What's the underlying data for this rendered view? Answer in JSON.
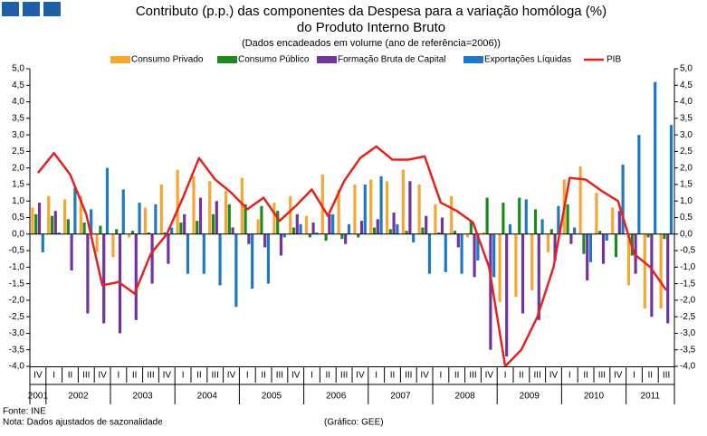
{
  "chart_data": {
    "type": "bar_line",
    "title_lines": [
      "Contributo (p.p.) das componentes da Despesa para a variação homóloga (%)",
      "do Produto Interno Bruto"
    ],
    "subtitle": "(Dados encadeados em volume (ano de referência=2006))",
    "groups": [
      {
        "label": "2001",
        "categories": [
          "IV"
        ]
      },
      {
        "label": "2002",
        "categories": [
          "I",
          "II",
          "III",
          "IV"
        ]
      },
      {
        "label": "2003",
        "categories": [
          "I",
          "II",
          "III",
          "IV"
        ]
      },
      {
        "label": "2004",
        "categories": [
          "I",
          "II",
          "III",
          "IV"
        ]
      },
      {
        "label": "2005",
        "categories": [
          "I",
          "II",
          "III",
          "IV"
        ]
      },
      {
        "label": "2006",
        "categories": [
          "I",
          "II",
          "III",
          "IV"
        ]
      },
      {
        "label": "2007",
        "categories": [
          "I",
          "II",
          "III",
          "IV"
        ]
      },
      {
        "label": "2008",
        "categories": [
          "I",
          "II",
          "III",
          "IV"
        ]
      },
      {
        "label": "2009",
        "categories": [
          "I",
          "II",
          "III",
          "IV"
        ]
      },
      {
        "label": "2010",
        "categories": [
          "I",
          "II",
          "III",
          "IV"
        ]
      },
      {
        "label": "2011",
        "categories": [
          "I",
          "II",
          "III"
        ]
      }
    ],
    "series": [
      {
        "name": "Consumo Privado",
        "color": "#f7a533",
        "kind": "bar",
        "values": [
          0.8,
          1.15,
          1.05,
          1.15,
          -0.55,
          -0.7,
          -0.1,
          0.8,
          1.5,
          1.95,
          1.75,
          1.6,
          1.3,
          1.7,
          0.45,
          0.95,
          1.15,
          0.55,
          1.8,
          1.35,
          1.5,
          1.65,
          1.6,
          1.95,
          1.5,
          0.9,
          1.15,
          -0.1,
          0.05,
          -2.05,
          -1.9,
          -1.7,
          -0.55,
          1.65,
          2.05,
          1.25,
          0.8,
          -1.55,
          -2.25,
          -2.25
        ]
      },
      {
        "name": "Consumo Público",
        "color": "#1e8a1e",
        "kind": "bar",
        "values": [
          0.6,
          0.55,
          0.45,
          0.35,
          0.25,
          0.15,
          0.1,
          0.05,
          0.05,
          0.35,
          0.4,
          0.6,
          0.9,
          0.9,
          0.85,
          0.7,
          0.2,
          -0.1,
          -0.2,
          -0.15,
          -0.1,
          0.2,
          0.15,
          0.1,
          0.2,
          0.05,
          0.1,
          0.4,
          1.1,
          0.95,
          1.1,
          0.75,
          0.15,
          0.9,
          -0.6,
          0.1,
          -0.7,
          -0.65,
          -0.1,
          -0.15
        ]
      },
      {
        "name": "Formação Bruta de Capital",
        "color": "#7034a0",
        "kind": "bar",
        "values": [
          0.95,
          0.7,
          -1.1,
          -2.4,
          -2.7,
          -3.0,
          -2.6,
          -1.5,
          -0.9,
          0.6,
          1.1,
          1.0,
          0.2,
          -0.3,
          -0.4,
          -0.65,
          0.6,
          0.35,
          0.6,
          -0.3,
          0.4,
          0.45,
          0.65,
          1.6,
          0.55,
          0.5,
          -0.4,
          -1.3,
          -3.5,
          -3.7,
          -2.4,
          -2.6,
          -0.8,
          -0.3,
          -1.4,
          -0.9,
          0.7,
          -1.2,
          -2.5,
          -2.7
        ]
      },
      {
        "name": "Exportações Líquidas",
        "color": "#1f78c4",
        "kind": "bar",
        "values": [
          -0.55,
          0.05,
          1.4,
          0.75,
          2.0,
          1.35,
          0.95,
          0.9,
          0.2,
          -1.2,
          -1.2,
          -1.55,
          -2.2,
          -1.65,
          -1.5,
          -0.1,
          0.3,
          0.05,
          0.6,
          0.3,
          1.5,
          1.75,
          0.3,
          -0.25,
          -1.2,
          -1.15,
          -1.2,
          -0.8,
          -1.3,
          0.3,
          1.05,
          0.45,
          0.85,
          0.2,
          -0.85,
          -0.2,
          2.1,
          3.0,
          4.6,
          3.3
        ]
      },
      {
        "name": "PIB",
        "color": "#e3231f",
        "kind": "line",
        "values": [
          1.85,
          2.45,
          1.8,
          0.6,
          -1.55,
          -1.45,
          -1.8,
          -0.6,
          0.0,
          1.1,
          2.3,
          1.65,
          1.25,
          0.75,
          1.1,
          0.4,
          0.85,
          1.35,
          0.55,
          1.6,
          2.3,
          2.65,
          2.25,
          2.25,
          2.35,
          0.95,
          0.7,
          0.35,
          -1.0,
          -4.0,
          -3.5,
          -2.5,
          -1.0,
          1.7,
          1.65,
          1.3,
          1.0,
          -0.6,
          -1.0,
          -1.7
        ]
      }
    ],
    "ylim": [
      -4,
      5
    ],
    "yticks": [
      {
        "value": -4,
        "label": "-4,0"
      },
      {
        "value": -3.5,
        "label": "-3,5"
      },
      {
        "value": -3,
        "label": "-3,0"
      },
      {
        "value": -2.5,
        "label": "-2,5"
      },
      {
        "value": -2,
        "label": "-2,0"
      },
      {
        "value": -1.5,
        "label": "-1,5"
      },
      {
        "value": -1,
        "label": "-1,0"
      },
      {
        "value": -0.5,
        "label": "-0,5"
      },
      {
        "value": 0,
        "label": "0,0"
      },
      {
        "value": 0.5,
        "label": "0,5"
      },
      {
        "value": 1,
        "label": "1,0"
      },
      {
        "value": 1.5,
        "label": "1,5"
      },
      {
        "value": 2,
        "label": "2,0"
      },
      {
        "value": 2.5,
        "label": "2,5"
      },
      {
        "value": 3,
        "label": "3,0"
      },
      {
        "value": 3.5,
        "label": "3,5"
      },
      {
        "value": 4,
        "label": "4,0"
      },
      {
        "value": 4.5,
        "label": "4,5"
      },
      {
        "value": 5,
        "label": "5,0"
      }
    ],
    "footnotes": [
      "Fonte: INE",
      "Nota: Dados ajustados de sazonalidade"
    ],
    "credit": "(Gráfico: GEE)"
  }
}
